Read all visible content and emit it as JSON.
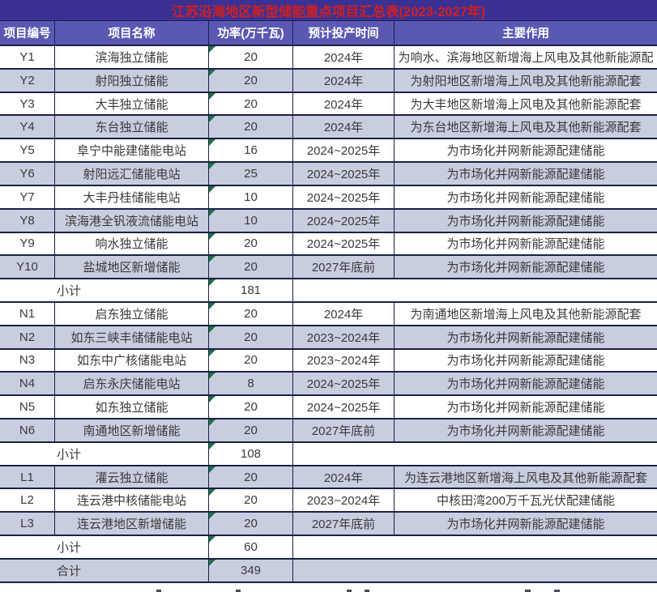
{
  "title": "江苏沿海地区新型储能重点项目汇总表(2023-2027年)",
  "columns": [
    "项目编号",
    "项目名称",
    "功率(万千瓦)",
    "预计投产时间",
    "主要作用"
  ],
  "rows": [
    {
      "type": "data",
      "shaded": false,
      "id": "Y1",
      "name": "滨海独立储能",
      "power": "20",
      "time": "2024年",
      "purpose": "为响水、滨海地区新增海上风电及其他新能源配"
    },
    {
      "type": "data",
      "shaded": true,
      "id": "Y2",
      "name": "射阳独立储能",
      "power": "20",
      "time": "2024年",
      "purpose": "为射阳地区新增海上风电及其他新能源配套"
    },
    {
      "type": "data",
      "shaded": false,
      "id": "Y3",
      "name": "大丰独立储能",
      "power": "20",
      "time": "2024年",
      "purpose": "为大丰地区新增海上风电及其他新能源配套"
    },
    {
      "type": "data",
      "shaded": true,
      "id": "Y4",
      "name": "东台独立储能",
      "power": "20",
      "time": "2024年",
      "purpose": "为东台地区新增海上风电及其他新能源配套"
    },
    {
      "type": "data",
      "shaded": false,
      "id": "Y5",
      "name": "阜宁中能建储能电站",
      "power": "16",
      "time": "2024~2025年",
      "purpose": "为市场化并网新能源配建储能"
    },
    {
      "type": "data",
      "shaded": true,
      "id": "Y6",
      "name": "射阳远汇储能电站",
      "power": "25",
      "time": "2024~2025年",
      "purpose": "为市场化并网新能源配建储能"
    },
    {
      "type": "data",
      "shaded": false,
      "id": "Y7",
      "name": "大丰丹桂储能电站",
      "power": "10",
      "time": "2024~2025年",
      "purpose": "为市场化并网新能源配建储能"
    },
    {
      "type": "data",
      "shaded": true,
      "id": "Y8",
      "name": "滨海港全钒液流储能电站",
      "power": "10",
      "time": "2024~2025年",
      "purpose": "为市场化并网新能源配建储能"
    },
    {
      "type": "data",
      "shaded": false,
      "id": "Y9",
      "name": "响水独立储能",
      "power": "20",
      "time": "2024~2025年",
      "purpose": "为市场化并网新能源配建储能"
    },
    {
      "type": "data",
      "shaded": true,
      "id": "Y10",
      "name": "盐城地区新增储能",
      "power": "20",
      "time": "2027年底前",
      "purpose": "为市场化并网新能源配建储能"
    },
    {
      "type": "subtotal",
      "shaded": false,
      "label": "小计",
      "power": "181"
    },
    {
      "type": "data",
      "shaded": false,
      "id": "N1",
      "name": "启东独立储能",
      "power": "20",
      "time": "2024年",
      "purpose": "为南通地区新增海上风电及其他新能源配套"
    },
    {
      "type": "data",
      "shaded": true,
      "id": "N2",
      "name": "如东三峡丰储储能电站",
      "power": "20",
      "time": "2023~2024年",
      "purpose": "为市场化并网新能源配建储能"
    },
    {
      "type": "data",
      "shaded": false,
      "id": "N3",
      "name": "如东中广核储能电站",
      "power": "20",
      "time": "2023~2024年",
      "purpose": "为市场化并网新能源配建储能"
    },
    {
      "type": "data",
      "shaded": true,
      "id": "N4",
      "name": "启东永庆储能电站",
      "power": "8",
      "time": "2024~2025年",
      "purpose": "为市场化并网新能源配建储能"
    },
    {
      "type": "data",
      "shaded": false,
      "id": "N5",
      "name": "如东独立储能",
      "power": "20",
      "time": "2024~2025年",
      "purpose": "为市场化并网新能源配建储能"
    },
    {
      "type": "data",
      "shaded": true,
      "id": "N6",
      "name": "南通地区新增储能",
      "power": "20",
      "time": "2027年底前",
      "purpose": "为市场化并网新能源配建储能"
    },
    {
      "type": "subtotal",
      "shaded": false,
      "label": "小计",
      "power": "108"
    },
    {
      "type": "data",
      "shaded": true,
      "id": "L1",
      "name": "灌云独立储能",
      "power": "20",
      "time": "2024年",
      "purpose": "为连云港地区新增海上风电及其他新能源配套"
    },
    {
      "type": "data",
      "shaded": false,
      "id": "L2",
      "name": "连云港中核储能电站",
      "power": "20",
      "time": "2023~2024年",
      "purpose": "中核田湾200万千瓦光伏配建储能"
    },
    {
      "type": "data",
      "shaded": true,
      "id": "L3",
      "name": "连云港地区新增储能",
      "power": "20",
      "time": "2027年底前",
      "purpose": "为市场化并网新能源配建储能"
    },
    {
      "type": "subtotal",
      "shaded": false,
      "label": "小计",
      "power": "60"
    },
    {
      "type": "total",
      "shaded": true,
      "label": "合计",
      "power": "349"
    }
  ],
  "colors": {
    "title_bg": "#3b3194",
    "title_text": "#d01f1f",
    "header_bg": "#5b58b4",
    "header_text": "#ffffff",
    "row_shade": "#c9cde0",
    "row_white": "#ffffff",
    "border": "#1c2145",
    "text": "#3a3a3a",
    "error_triangle": "#1e7145"
  }
}
